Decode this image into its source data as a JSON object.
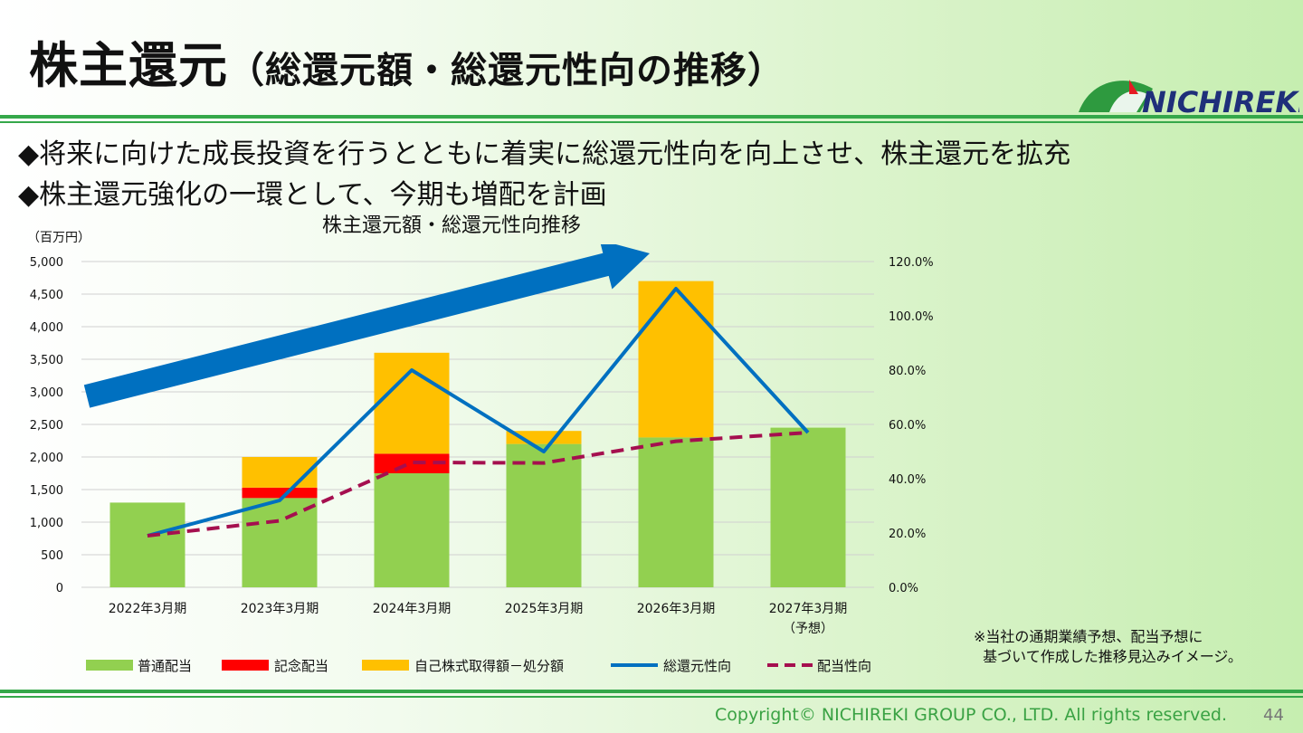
{
  "slide": {
    "title_main": "株主還元",
    "title_sub": "（総還元額・総還元性向の推移）",
    "bullet_1": "◆将来に向けた成長投資を行うとともに着実に総還元性向を向上させ、株主還元を拡充",
    "bullet_2": "◆株主還元強化の一環として、今期も増配を計画",
    "note": "※当社の通期業績予想、配当予想に\n  基づいて作成した推移見込みイメージ。",
    "copyright": "Copyright© NICHIREKI GROUP CO., LTD. All rights reserved.",
    "page_number": "44",
    "logo_text": "NICHIREKI"
  },
  "colors": {
    "ordinary": "#92d050",
    "commemorative": "#ff0000",
    "buyback": "#ffc000",
    "total_ratio": "#0070c0",
    "payout_ratio": "#a50f4f",
    "arrow": "#0070c0",
    "accent_green": "#35a84a"
  },
  "chart_data": {
    "type": "bar",
    "title": "株主還元額・総還元性向推移",
    "unit_label": "（百万円）",
    "categories": [
      "2022年3月期",
      "2023年3月期",
      "2024年3月期",
      "2025年3月期",
      "2026年3月期",
      "2027年3月期"
    ],
    "category_sublabels": [
      "",
      "",
      "",
      "",
      "",
      "（予想）"
    ],
    "stacked": true,
    "series": [
      {
        "name": "普通配当",
        "kind": "bar",
        "axis": "left",
        "values": [
          1300,
          1370,
          1750,
          2200,
          2300,
          2450
        ]
      },
      {
        "name": "記念配当",
        "kind": "bar",
        "axis": "left",
        "values": [
          0,
          160,
          300,
          0,
          0,
          0
        ]
      },
      {
        "name": "自己株式取得額－処分額",
        "kind": "bar",
        "axis": "left",
        "values": [
          0,
          470,
          1550,
          200,
          2400,
          0
        ]
      },
      {
        "name": "総還元性向",
        "kind": "line",
        "axis": "right",
        "style": "solid",
        "values": [
          19.0,
          32.0,
          80.0,
          50.0,
          110.0,
          57.0
        ]
      },
      {
        "name": "配当性向",
        "kind": "line",
        "axis": "right",
        "style": "dashed",
        "values": [
          19.0,
          24.5,
          46.0,
          45.8,
          53.8,
          57.0
        ]
      }
    ],
    "y_left": {
      "min": 0,
      "max": 5000,
      "step": 500,
      "tick_labels": [
        "0",
        "500",
        "1,000",
        "1,500",
        "2,000",
        "2,500",
        "3,000",
        "3,500",
        "4,000",
        "4,500",
        "5,000"
      ]
    },
    "y_right": {
      "min": 0,
      "max": 120,
      "step": 20,
      "tick_labels": [
        "0.0%",
        "20.0%",
        "40.0%",
        "60.0%",
        "80.0%",
        "100.0%",
        "120.0%"
      ]
    },
    "grid": true,
    "legend_position": "bottom"
  }
}
